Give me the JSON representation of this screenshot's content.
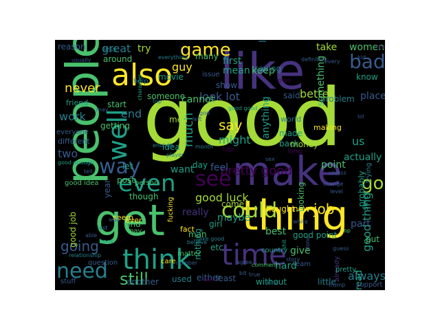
{
  "background_color": "#000000",
  "palette": {
    "lime": "#a5db36",
    "green": "#4ac16d",
    "teal": "#1fa187",
    "cyan": "#277f8e",
    "blue": "#365c8d",
    "indigo": "#46327e",
    "purple": "#440154",
    "yellow": "#fde725"
  },
  "words": [
    {
      "text": "good",
      "color": "lime"
    },
    {
      "text": "like",
      "color": "indigo"
    },
    {
      "text": "people",
      "color": "green"
    },
    {
      "text": "get",
      "color": "green"
    },
    {
      "text": "thing",
      "color": "yellow"
    },
    {
      "text": "make",
      "color": "indigo"
    },
    {
      "text": "think",
      "color": "teal"
    },
    {
      "text": "time",
      "color": "indigo"
    },
    {
      "text": "also",
      "color": "yellow"
    },
    {
      "text": "well",
      "color": "teal"
    },
    {
      "text": "even",
      "color": "teal"
    },
    {
      "text": "see",
      "color": "purple"
    },
    {
      "text": "need",
      "color": "cyan"
    },
    {
      "text": "could",
      "color": "lime"
    },
    {
      "text": "game",
      "color": "yellow"
    },
    {
      "text": "go",
      "color": "lime"
    },
    {
      "text": "way",
      "color": "blue"
    },
    {
      "text": "bad",
      "color": "blue"
    },
    {
      "text": "still",
      "color": "green"
    },
    {
      "text": "going",
      "color": "blue"
    },
    {
      "text": "work",
      "color": "cyan"
    },
    {
      "text": "say",
      "color": "yellow"
    },
    {
      "text": "much",
      "color": "teal"
    },
    {
      "text": "job",
      "color": "yellow"
    },
    {
      "text": "look lot",
      "color": "blue"
    },
    {
      "text": "good luck",
      "color": "lime"
    },
    {
      "text": "pretty good",
      "color": "purple"
    },
    {
      "text": "better",
      "color": "lime"
    },
    {
      "text": "feel",
      "color": "blue"
    },
    {
      "text": "always",
      "color": "cyan"
    },
    {
      "text": "good thing",
      "color": "teal"
    },
    {
      "text": "never",
      "color": "yellow"
    },
    {
      "text": "great",
      "color": "cyan"
    },
    {
      "text": "take",
      "color": "lime"
    },
    {
      "text": "women",
      "color": "green"
    },
    {
      "text": "keep",
      "color": "green"
    },
    {
      "text": "point",
      "color": "green"
    },
    {
      "text": "actually",
      "color": "teal"
    },
    {
      "text": "guy",
      "color": "yellow"
    },
    {
      "text": "end",
      "color": "cyan"
    },
    {
      "text": "cannot",
      "color": "green"
    },
    {
      "text": "two",
      "color": "blue"
    },
    {
      "text": "might",
      "color": "teal"
    },
    {
      "text": "us",
      "color": "teal"
    },
    {
      "text": "find",
      "color": "green"
    },
    {
      "text": "money",
      "color": "lime"
    },
    {
      "text": "part",
      "color": "blue"
    },
    {
      "text": "best",
      "color": "green"
    },
    {
      "text": "give",
      "color": "green"
    },
    {
      "text": "maybe",
      "color": "teal"
    },
    {
      "text": "come",
      "color": "lime"
    },
    {
      "text": "really",
      "color": "indigo"
    },
    {
      "text": "hard",
      "color": "teal"
    },
    {
      "text": "read",
      "color": "teal"
    },
    {
      "text": "mean",
      "color": "teal"
    },
    {
      "text": "first",
      "color": "teal"
    },
    {
      "text": "life",
      "color": "cyan"
    },
    {
      "text": "many",
      "color": "green"
    },
    {
      "text": "try",
      "color": "lime"
    },
    {
      "text": "around",
      "color": "green"
    },
    {
      "text": "reason",
      "color": "blue"
    },
    {
      "text": "show",
      "color": "blue"
    },
    {
      "text": "said",
      "color": "blue"
    },
    {
      "text": "place",
      "color": "blue"
    },
    {
      "text": "saying",
      "color": "cyan"
    },
    {
      "text": "problem",
      "color": "cyan"
    },
    {
      "text": "know",
      "color": "teal"
    },
    {
      "text": "movie",
      "color": "teal"
    },
    {
      "text": "someone",
      "color": "green"
    },
    {
      "text": "start",
      "color": "green"
    },
    {
      "text": "getting",
      "color": "green"
    },
    {
      "text": "men",
      "color": "lime"
    },
    {
      "text": "idea",
      "color": "teal"
    },
    {
      "text": "want",
      "color": "teal"
    },
    {
      "text": "day",
      "color": "teal"
    },
    {
      "text": "man",
      "color": "green"
    },
    {
      "text": "girl",
      "color": "teal"
    },
    {
      "text": "new",
      "color": "yellow"
    },
    {
      "text": "made",
      "color": "teal"
    },
    {
      "text": "back",
      "color": "teal"
    },
    {
      "text": "making",
      "color": "yellow"
    },
    {
      "text": "world",
      "color": "cyan"
    },
    {
      "text": "something",
      "color": "green"
    },
    {
      "text": "anything",
      "color": "teal"
    },
    {
      "text": "thought",
      "color": "yellow"
    },
    {
      "text": "good point",
      "color": "teal"
    },
    {
      "text": "nothing",
      "color": "teal"
    },
    {
      "text": "etc",
      "color": "teal"
    },
    {
      "text": "let",
      "color": "teal"
    },
    {
      "text": "post",
      "color": "green"
    },
    {
      "text": "year",
      "color": "blue"
    },
    {
      "text": "good job",
      "color": "lime"
    },
    {
      "text": "though",
      "color": "green"
    },
    {
      "text": "seem",
      "color": "yellow"
    },
    {
      "text": "ever",
      "color": "yellow"
    },
    {
      "text": "fact",
      "color": "yellow"
    },
    {
      "text": "used",
      "color": "cyan"
    },
    {
      "text": "either",
      "color": "blue"
    },
    {
      "text": "least",
      "color": "blue"
    },
    {
      "text": "without",
      "color": "teal"
    },
    {
      "text": "little",
      "color": "cyan"
    },
    {
      "text": "another",
      "color": "blue"
    },
    {
      "text": "looking",
      "color": "green"
    },
    {
      "text": "since",
      "color": "teal"
    },
    {
      "text": "probably",
      "color": "teal"
    },
    {
      "text": "friend",
      "color": "teal"
    },
    {
      "text": "different",
      "color": "blue"
    },
    {
      "text": "put",
      "color": "green"
    },
    {
      "text": "less",
      "color": "cyan"
    },
    {
      "text": "help",
      "color": "cyan"
    },
    {
      "text": "issue",
      "color": "blue"
    },
    {
      "text": "person",
      "color": "green"
    },
    {
      "text": "trying",
      "color": "cyan"
    },
    {
      "text": "already",
      "color": "indigo"
    },
    {
      "text": "pretty",
      "color": "teal"
    },
    {
      "text": "team",
      "color": "blue"
    },
    {
      "text": "matter",
      "color": "green"
    },
    {
      "text": "care",
      "color": "yellow"
    },
    {
      "text": "fucking",
      "color": "yellow"
    },
    {
      "text": "question",
      "color": "blue"
    },
    {
      "text": "stuff",
      "color": "blue"
    },
    {
      "text": "support",
      "color": "blue"
    },
    {
      "text": "good idea",
      "color": "green"
    },
    {
      "text": "everyone",
      "color": "blue"
    },
    {
      "text": "enough",
      "color": "cyan"
    },
    {
      "text": "player",
      "color": "cyan"
    },
    {
      "text": "long",
      "color": "purple"
    },
    {
      "text": "high",
      "color": "purple"
    },
    {
      "text": "country",
      "color": "teal"
    },
    {
      "text": "book",
      "color": "teal"
    },
    {
      "text": "character",
      "color": "teal"
    },
    {
      "text": "everything",
      "color": "cyan"
    },
    {
      "text": "definitely",
      "color": "blue"
    },
    {
      "text": "relationship",
      "color": "cyan"
    },
    {
      "text": "comment",
      "color": "green"
    },
    {
      "text": "pay",
      "color": "green"
    },
    {
      "text": "believe",
      "color": "cyan"
    },
    {
      "text": "kind",
      "color": "cyan"
    },
    {
      "text": "true",
      "color": "blue"
    },
    {
      "text": "every",
      "color": "blue"
    },
    {
      "text": "kid",
      "color": "blue"
    },
    {
      "text": "thank",
      "color": "purple"
    },
    {
      "text": "able",
      "color": "blue"
    },
    {
      "text": "last",
      "color": "cyan"
    },
    {
      "text": "may",
      "color": "blue"
    },
    {
      "text": "usually",
      "color": "blue"
    },
    {
      "text": "shit",
      "color": "teal"
    },
    {
      "text": "done",
      "color": "blue"
    },
    {
      "text": "op",
      "color": "green"
    },
    {
      "text": "trump",
      "color": "blue"
    },
    {
      "text": "story",
      "color": "blue"
    },
    {
      "text": "play",
      "color": "purple"
    },
    {
      "text": "left",
      "color": "blue"
    },
    {
      "text": "tell",
      "color": "blue"
    },
    {
      "text": "top",
      "color": "cyan"
    },
    {
      "text": "god",
      "color": "blue"
    },
    {
      "text": "month",
      "color": "cyan"
    },
    {
      "text": "unless",
      "color": "blue"
    },
    {
      "text": "change",
      "color": "blue"
    },
    {
      "text": "level",
      "color": "blue"
    },
    {
      "text": "lol",
      "color": "blue"
    },
    {
      "text": "white",
      "color": "blue"
    },
    {
      "text": "bit",
      "color": "blue"
    },
    {
      "text": "number",
      "color": "blue"
    },
    {
      "text": "sex",
      "color": "blue"
    },
    {
      "text": "agree",
      "color": "blue"
    },
    {
      "text": "guess",
      "color": "blue"
    },
    {
      "text": "wait",
      "color": "blue"
    },
    {
      "text": "like good",
      "color": "cyan"
    },
    {
      "text": "good enough",
      "color": "teal"
    },
    {
      "text": "good good",
      "color": "teal"
    },
    {
      "text": "guys",
      "color": "purple"
    }
  ]
}
